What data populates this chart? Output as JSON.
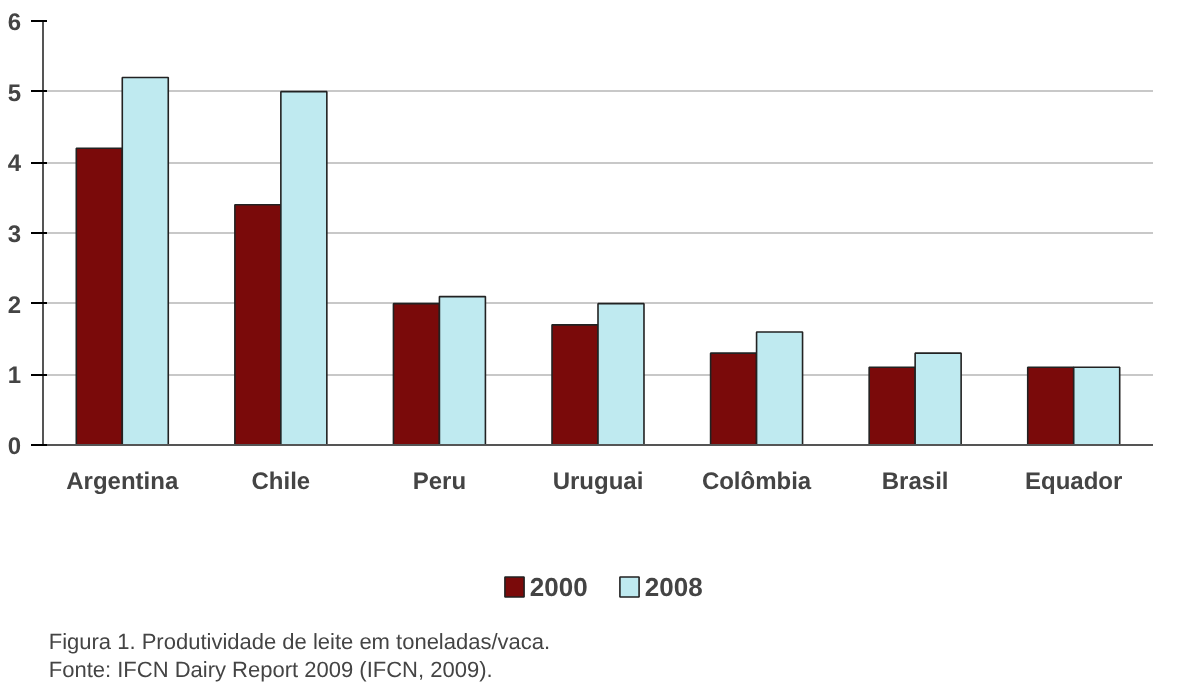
{
  "chart_data": {
    "type": "bar",
    "categories": [
      "Argentina",
      "Chile",
      "Peru",
      "Uruguai",
      "Colômbia",
      "Brasil",
      "Equador"
    ],
    "series": [
      {
        "name": "2000",
        "color": "#7a0a0a",
        "values": [
          4.2,
          3.4,
          2.0,
          1.7,
          1.3,
          1.1,
          1.1
        ]
      },
      {
        "name": "2008",
        "color": "#bfeaf0",
        "values": [
          5.2,
          5.0,
          2.1,
          2.0,
          1.6,
          1.3,
          1.1
        ]
      }
    ],
    "ylim": [
      0,
      6
    ],
    "yticks": [
      0,
      1,
      2,
      3,
      4,
      5,
      6
    ],
    "grid": "y",
    "legend": "bottom",
    "annotations": [
      "Figura 1. Produtividade de leite em toneladas/vaca.",
      "Fonte: IFCN Dairy Report 2009 (IFCN, 2009)."
    ]
  }
}
